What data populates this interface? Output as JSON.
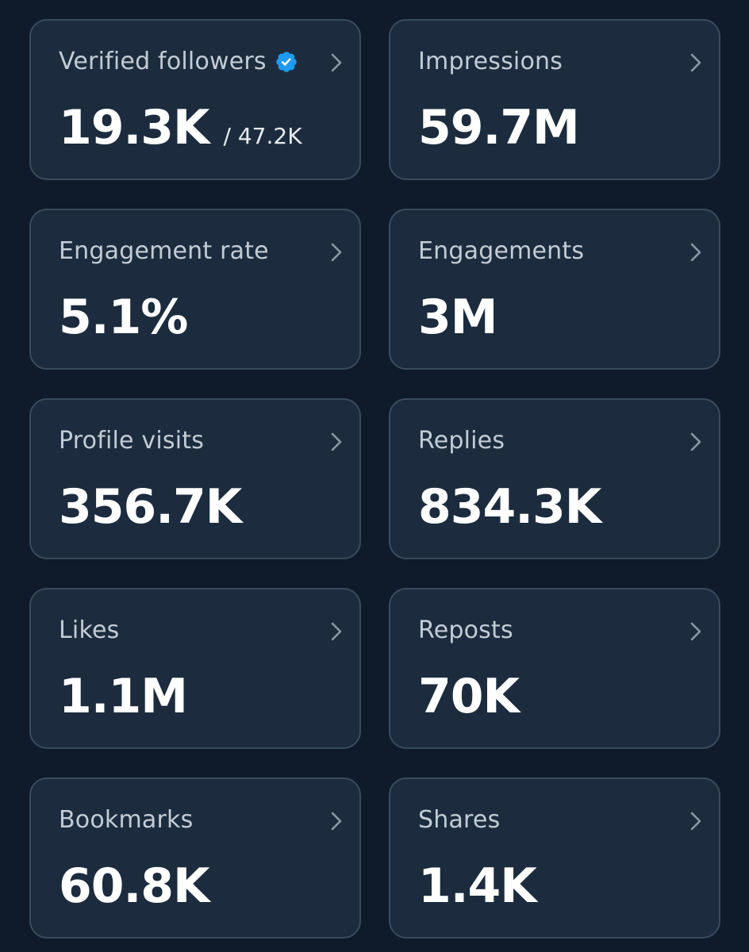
{
  "colors": {
    "background": "#0f1b2a",
    "card": "#1c2c3e",
    "card_border": "#3a4b5d",
    "label": "#c3ccd6",
    "value": "#ffffff",
    "verified_badge": "#1d9bf0"
  },
  "metrics": [
    {
      "label": "Verified followers",
      "value": "19.3K",
      "sub": "/ 47.2K",
      "icon": "verified-badge-icon"
    },
    {
      "label": "Impressions",
      "value": "59.7M"
    },
    {
      "label": "Engagement rate",
      "value": "5.1%"
    },
    {
      "label": "Engagements",
      "value": "3M"
    },
    {
      "label": "Profile visits",
      "value": "356.7K"
    },
    {
      "label": "Replies",
      "value": "834.3K"
    },
    {
      "label": "Likes",
      "value": "1.1M"
    },
    {
      "label": "Reposts",
      "value": "70K"
    },
    {
      "label": "Bookmarks",
      "value": "60.8K"
    },
    {
      "label": "Shares",
      "value": "1.4K"
    }
  ]
}
